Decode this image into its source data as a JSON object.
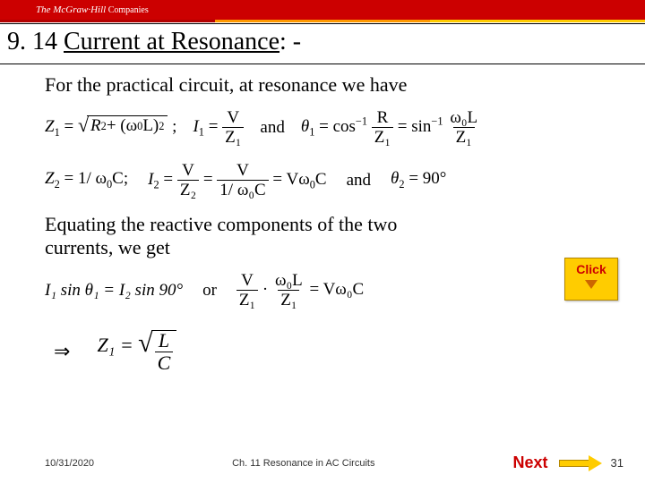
{
  "header": {
    "brand": "The McGraw·Hill",
    "brand_suffix": " Companies",
    "strip_colors": [
      "#b30000",
      "#ff9900",
      "#ffcc00"
    ]
  },
  "title": {
    "number": "9. 14 ",
    "text": "Current at Resonance",
    "suffix": ": -"
  },
  "body": {
    "line1": "For the practical circuit, at resonance we have",
    "line2a": "Equating the reactive components of the two",
    "line2b": "currents, we get"
  },
  "equations": {
    "row1": {
      "z1_lhs": "Z",
      "z1_sub": "1",
      "eq": " = ",
      "sqrt_inner_a": "R",
      "sqrt_sup_a": "2",
      "sqrt_plus": " + (ω",
      "sqrt_sub0": "0",
      "sqrt_L": "L)",
      "sqrt_sup_b": "2",
      "semi": " ;",
      "i1": "I",
      "i1_sub": "1",
      "frac_v": "V",
      "frac_z1": "Z₁",
      "and1": "and",
      "theta1": "θ",
      "theta1_sub": "1",
      "cos": " = cos",
      "cos_sup": "−1",
      "frac_r": "R",
      "eq2": " = sin",
      "sin_sup": "−1",
      "frac_wl_num": "ω₀L"
    },
    "row2": {
      "z2": "Z",
      "z2_sub": "2",
      "eq": " = 1/ ω",
      "w0sub": "0",
      "c": "C;",
      "i2": "I",
      "i2_sub": "2",
      "frac_v": "V",
      "frac_z2": "Z₂",
      "frac_1wc": "1/ ω₀C",
      "vresult": " = Vω",
      "vres_sub": "0",
      "vres_c": "C",
      "and2": "and",
      "theta2": "θ",
      "theta2_sub": "2",
      "theta2_val": " = 90°"
    },
    "row3": {
      "lhs": "I₁ sin θ₁ = I₂ sin 90°",
      "or": "or",
      "frac_v": "V",
      "frac_z1": "Z₁",
      "dot": " · ",
      "frac_wl": "ω₀L",
      "rhs": " = Vω₀C"
    },
    "row4": {
      "implies": "⇒",
      "z1": "Z₁ = ",
      "frac_l": "L",
      "frac_c": "C"
    }
  },
  "click": {
    "label": "Click"
  },
  "footer": {
    "date": "10/31/2020",
    "chapter": "Ch. 11 Resonance in AC Circuits",
    "next": "Next",
    "page": "31"
  },
  "colors": {
    "header_bg": "#cc0000",
    "click_bg": "#ffcc00",
    "click_text": "#cc0000",
    "next_text": "#cc0000"
  }
}
